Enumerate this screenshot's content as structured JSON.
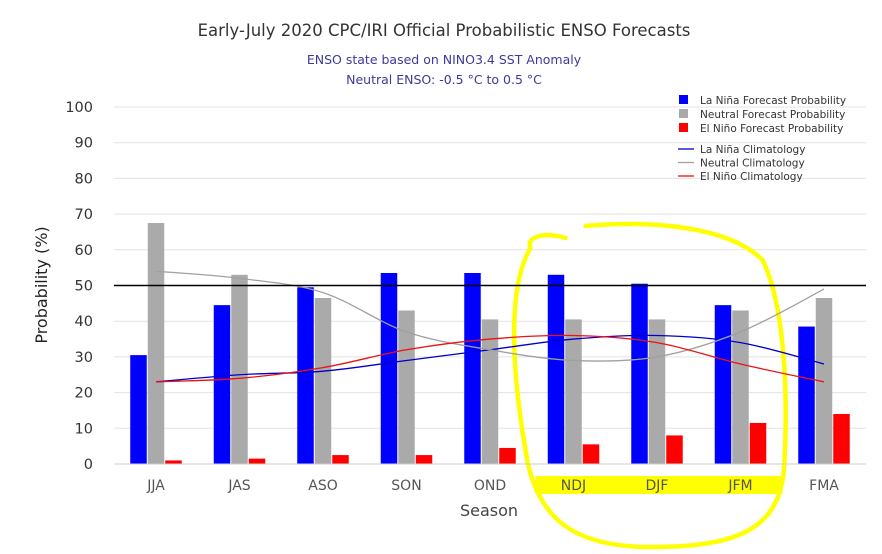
{
  "chart_data": {
    "type": "bar",
    "title": "Early-July 2020 CPC/IRI Official Probabilistic ENSO Forecasts",
    "subtitle_lines": [
      "ENSO state based on NINO3.4 SST Anomaly",
      "Neutral ENSO: -0.5 °C to 0.5 °C"
    ],
    "xlabel": "Season",
    "ylabel": "Probability (%)",
    "ylim": [
      0,
      100
    ],
    "yticks": [
      0,
      10,
      20,
      30,
      40,
      50,
      60,
      70,
      80,
      90,
      100
    ],
    "reference_line": 50,
    "categories": [
      "JJA",
      "JAS",
      "ASO",
      "SON",
      "OND",
      "NDJ",
      "DJF",
      "JFM",
      "FMA"
    ],
    "highlighted_categories": [
      "NDJ",
      "DJF",
      "JFM"
    ],
    "series": [
      {
        "name": "La Niña Forecast Probability",
        "kind": "bar",
        "color": "#0000ff",
        "values": [
          30.5,
          44.5,
          49.5,
          53.5,
          53.5,
          53,
          50.5,
          44.5,
          38.5
        ]
      },
      {
        "name": "Neutral Forecast Probability",
        "kind": "bar",
        "color": "#aaaaaa",
        "values": [
          67.5,
          53,
          46.5,
          43,
          40.5,
          40.5,
          40.5,
          43,
          46.5
        ]
      },
      {
        "name": "El Niño Forecast Probability",
        "kind": "bar",
        "color": "#ff0000",
        "values": [
          1,
          1.5,
          2.5,
          2.5,
          4.5,
          5.5,
          8,
          11.5,
          14
        ]
      },
      {
        "name": "La Niña Climatology",
        "kind": "line",
        "color": "#0000cc",
        "values": [
          23,
          25,
          26,
          29,
          32,
          35,
          36,
          34,
          28
        ]
      },
      {
        "name": "Neutral Climatology",
        "kind": "line",
        "color": "#a0a0a0",
        "values": [
          54,
          52,
          48,
          37,
          32,
          29,
          30,
          37,
          49
        ]
      },
      {
        "name": "El Niño Climatology",
        "kind": "line",
        "color": "#ee1111",
        "values": [
          23,
          24,
          27,
          32,
          35,
          36,
          34,
          28,
          23
        ]
      }
    ],
    "legend_position": "top-right",
    "colors": {
      "title": "#333333",
      "subtitle": "#3b3b9b",
      "highlight": "#ffff00",
      "axis_text": "#444444"
    }
  }
}
